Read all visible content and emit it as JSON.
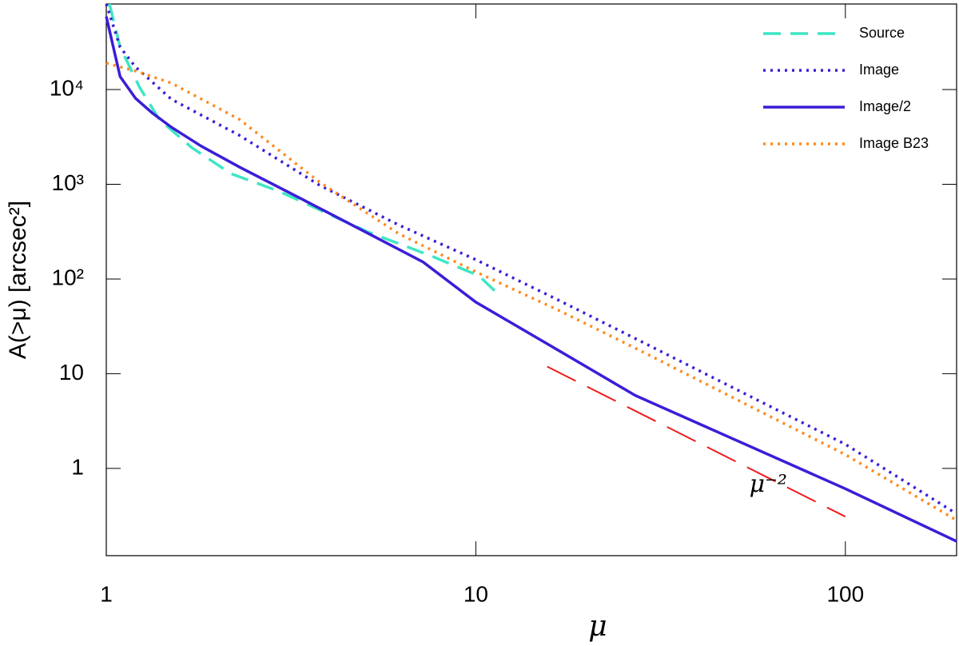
{
  "chart_data": {
    "type": "line",
    "xlabel": "μ",
    "ylabel": "A(>μ) [arcsec²]",
    "xlog": true,
    "ylog": true,
    "xlim": [
      1,
      200
    ],
    "ylim": [
      0.12,
      80000
    ],
    "xticks": [
      1,
      10,
      100
    ],
    "yticks": [
      1,
      10,
      {
        "value": 100,
        "label": "10²"
      },
      {
        "value": 1000,
        "label": "10³"
      },
      {
        "value": 10000,
        "label": "10⁴"
      }
    ],
    "legend": "upper right",
    "series": [
      {
        "name": "Source",
        "color": "#3ee6c4",
        "style": "dashed",
        "x": [
          1.02,
          1.09,
          1.23,
          1.39,
          1.7,
          2.18,
          2.94,
          5.08,
          7.55,
          10.2,
          11.5
        ],
        "values": [
          80000,
          28000,
          10600,
          4850,
          2450,
          1290,
          840,
          316,
          176,
          108,
          69
        ]
      },
      {
        "name": "Image",
        "color": "#3a1ed8",
        "style": "dotted",
        "x": [
          1,
          1.09,
          1.2,
          1.5,
          2.29,
          3.77,
          6.2,
          10,
          16.7,
          27.5,
          100,
          198
        ],
        "values": [
          80000,
          28000,
          17300,
          7900,
          3290,
          980,
          370,
          160,
          60,
          22.7,
          1.8,
          0.34
        ]
      },
      {
        "name": "Image/2",
        "color": "#3a1ed8",
        "style": "solid",
        "x": [
          1,
          1.09,
          1.2,
          1.33,
          1.5,
          1.8,
          2.3,
          3.4,
          5.1,
          7.2,
          10,
          17,
          27,
          100,
          200
        ],
        "values": [
          59000,
          13700,
          8070,
          5680,
          4000,
          2550,
          1510,
          690,
          304,
          151,
          57,
          17,
          5.9,
          0.61,
          0.17
        ]
      },
      {
        "name": "Image B23",
        "color": "#ff8a1c",
        "style": "dotted",
        "x": [
          1,
          1.2,
          1.5,
          2.29,
          3.77,
          6.2,
          10,
          16.7,
          27.5,
          100,
          198
        ],
        "values": [
          19000,
          15700,
          11700,
          4850,
          1060,
          299,
          119,
          47,
          18,
          1.4,
          0.29
        ]
      }
    ],
    "annotations": [
      {
        "text": "μ⁻²",
        "color": "#ee1c1c",
        "style": "longdash",
        "x": [
          15.6,
          100
        ],
        "values": [
          11.9,
          0.31
        ]
      }
    ]
  }
}
